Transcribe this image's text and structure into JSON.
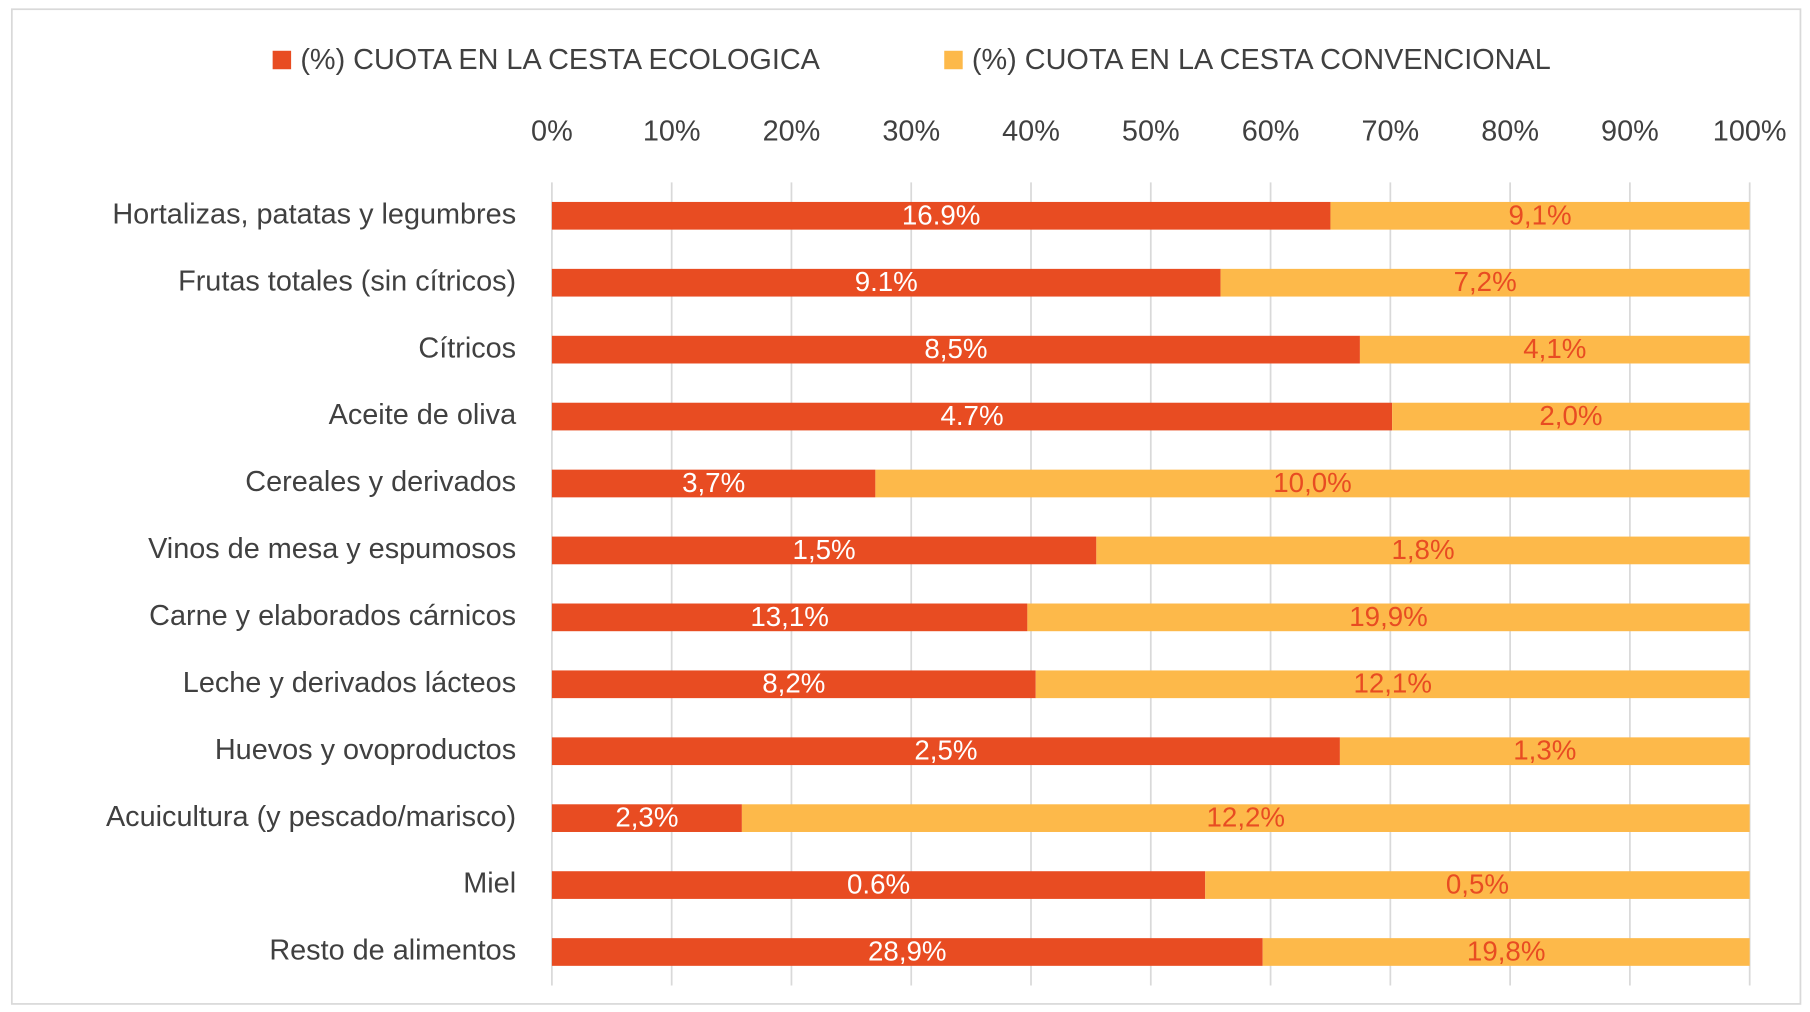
{
  "chart_data": {
    "type": "bar",
    "orientation": "horizontal",
    "stacked": "percent",
    "categories": [
      "Hortalizas, patatas y legumbres",
      "Frutas totales (sin cítricos)",
      "Cítricos",
      "Aceite de oliva",
      "Cereales y derivados",
      "Vinos de mesa y espumosos",
      "Carne y elaborados cárnicos",
      "Leche y derivados lácteos",
      "Huevos y ovoproductos",
      "Acuicultura (y pescado/marisco)",
      "Miel",
      "Resto de alimentos"
    ],
    "series": [
      {
        "name": "(%) CUOTA EN LA CESTA ECOLOGICA",
        "color": "#e84c22",
        "label_color": "#ffffff",
        "values": [
          16.9,
          9.1,
          8.5,
          4.7,
          3.7,
          1.5,
          13.1,
          8.2,
          2.5,
          2.3,
          0.6,
          28.9
        ],
        "value_labels": [
          "16.9%",
          "9.1%",
          "8,5%",
          "4.7%",
          "3,7%",
          "1,5%",
          "13,1%",
          "8,2%",
          "2,5%",
          "2,3%",
          "0.6%",
          "28,9%"
        ]
      },
      {
        "name": "(%) CUOTA EN LA CESTA CONVENCIONAL",
        "color": "#fdb94a",
        "label_color": "#e84c22",
        "values": [
          9.1,
          7.2,
          4.1,
          2.0,
          10.0,
          1.8,
          19.9,
          12.1,
          1.3,
          12.2,
          0.5,
          19.8
        ],
        "value_labels": [
          "9,1%",
          "7,2%",
          "4,1%",
          "2,0%",
          "10,0%",
          "1,8%",
          "19,9%",
          "12,1%",
          "1,3%",
          "12,2%",
          "0,5%",
          "19,8%"
        ]
      }
    ],
    "xlim": [
      0,
      100
    ],
    "xticks": [
      {
        "value": 0,
        "label": "0%"
      },
      {
        "value": 10,
        "label": "10%"
      },
      {
        "value": 20,
        "label": "20%"
      },
      {
        "value": 30,
        "label": "30%"
      },
      {
        "value": 40,
        "label": "40%"
      },
      {
        "value": 50,
        "label": "50%"
      },
      {
        "value": 60,
        "label": "60%"
      },
      {
        "value": 70,
        "label": "70%"
      },
      {
        "value": 80,
        "label": "80%"
      },
      {
        "value": 90,
        "label": "90%"
      },
      {
        "value": 100,
        "label": "100%"
      }
    ],
    "grid": true,
    "legend": "top"
  }
}
